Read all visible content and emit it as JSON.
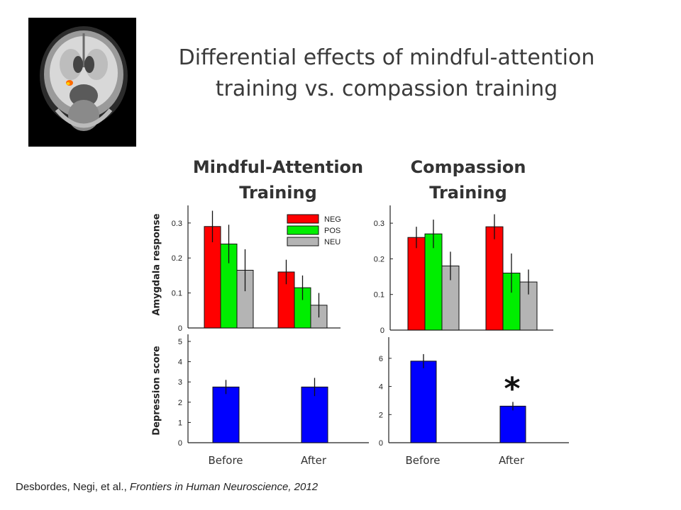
{
  "slide": {
    "title_line1": "Differential effects of mindful-attention",
    "title_line2": "training vs. compassion training",
    "column_title_left_line1": "Mindful-Attention",
    "column_title_left_line2": "Training",
    "column_title_right_line1": "Compassion",
    "column_title_right_line2": "Training",
    "ylabel_top": "Amygdala  response",
    "ylabel_bottom": "Depression score",
    "x_categories": [
      "Before",
      "After",
      "Before",
      "After"
    ],
    "citation_authors": "Desbordes, Negi, et al., ",
    "citation_journal": "Frontiers in Human Neuroscience, 2012",
    "annotation": "*"
  },
  "colors": {
    "NEG": "#ff0000",
    "POS": "#00ee00",
    "NEU": "#b4b4b4",
    "depression": "#0000ff"
  },
  "chart_data": [
    {
      "type": "bar",
      "name": "Mindful-Attention Training – Amygdala response",
      "ylabel": "Amygdala  response",
      "categories": [
        "Before",
        "After"
      ],
      "ylim": [
        0,
        0.33
      ],
      "yticks": [
        0,
        0.1,
        0.2,
        0.3
      ],
      "ytick_labels": [
        "0",
        "0.1",
        "0.2",
        "0.3"
      ],
      "series": [
        {
          "name": "NEG",
          "values": [
            0.29,
            0.16
          ],
          "error": [
            0.045,
            0.035
          ]
        },
        {
          "name": "POS",
          "values": [
            0.24,
            0.115
          ],
          "error": [
            0.055,
            0.035
          ]
        },
        {
          "name": "NEU",
          "values": [
            0.165,
            0.065
          ],
          "error": [
            0.06,
            0.035
          ]
        }
      ],
      "legend": "top-right"
    },
    {
      "type": "bar",
      "name": "Compassion Training – Amygdala response",
      "categories": [
        "Before",
        "After"
      ],
      "ylim": [
        0,
        0.33
      ],
      "yticks": [
        0,
        0.1,
        0.2,
        0.3
      ],
      "ytick_labels": [
        "0",
        "0.1",
        "0.2",
        "0.3"
      ],
      "series": [
        {
          "name": "NEG",
          "values": [
            0.26,
            0.29
          ],
          "error": [
            0.03,
            0.035
          ]
        },
        {
          "name": "POS",
          "values": [
            0.27,
            0.16
          ],
          "error": [
            0.04,
            0.055
          ]
        },
        {
          "name": "NEU",
          "values": [
            0.18,
            0.135
          ],
          "error": [
            0.04,
            0.035
          ]
        }
      ]
    },
    {
      "type": "bar",
      "name": "Mindful-Attention Training – Depression score",
      "ylabel": "Depression score",
      "categories": [
        "Before",
        "After"
      ],
      "ylim": [
        0,
        5
      ],
      "yticks": [
        0,
        1,
        2,
        3,
        4,
        5
      ],
      "ytick_labels": [
        "0",
        "1",
        "2",
        "3",
        "4",
        "5"
      ],
      "series": [
        {
          "name": "Depression score",
          "values": [
            2.75,
            2.75
          ],
          "error": [
            0.35,
            0.45
          ]
        }
      ]
    },
    {
      "type": "bar",
      "name": "Compassion Training – Depression score",
      "categories": [
        "Before",
        "After"
      ],
      "ylim": [
        0,
        7
      ],
      "yticks": [
        0,
        2,
        4,
        6
      ],
      "ytick_labels": [
        "0",
        "2",
        "4",
        "6"
      ],
      "series": [
        {
          "name": "Depression score",
          "values": [
            5.8,
            2.6
          ],
          "error": [
            0.5,
            0.3
          ]
        }
      ],
      "annotations": [
        {
          "text": "*",
          "category": "After"
        }
      ]
    }
  ]
}
